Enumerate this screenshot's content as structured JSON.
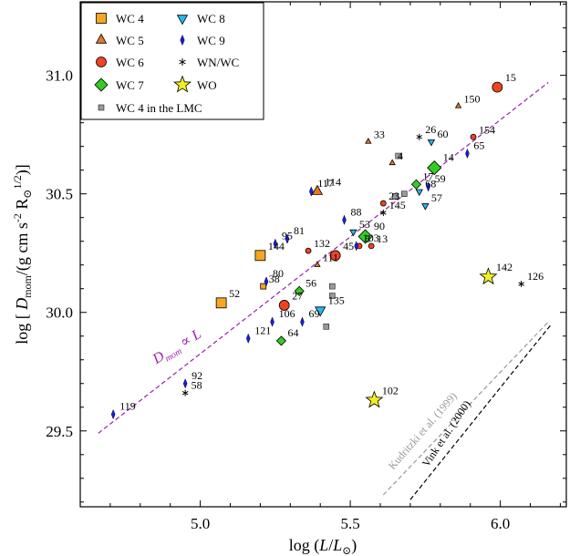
{
  "chart_data": {
    "type": "scatter",
    "xlabel": "log (L/L⊙)",
    "ylabel": "log [ D_mom / (g cm s⁻² R⊙^1/2) ]",
    "xlim": [
      4.6,
      6.22
    ],
    "ylim": [
      29.18,
      31.31
    ],
    "x_ticks": [
      5.0,
      5.5,
      6.0
    ],
    "y_ticks": [
      29.5,
      30.0,
      30.5,
      31.0
    ],
    "x_tick_labels": [
      "5.0",
      "5.5",
      "6.0"
    ],
    "y_tick_labels": [
      "29.5",
      "30.0",
      "30.5",
      "31.0"
    ],
    "legend_position": "top-left",
    "categories": [
      {
        "key": "wc4",
        "name": "WC 4",
        "marker": "square",
        "color": "#f5a623"
      },
      {
        "key": "wc5",
        "name": "WC 5",
        "marker": "triangle-up",
        "color": "#e8752a"
      },
      {
        "key": "wc6",
        "name": "WC 6",
        "marker": "circle",
        "color": "#ee4422"
      },
      {
        "key": "wc7",
        "name": "WC 7",
        "marker": "diamond",
        "color": "#33cc22"
      },
      {
        "key": "wc4lmc",
        "name": "WC 4 in the LMC",
        "marker": "small-square",
        "color": "#999999"
      },
      {
        "key": "wc8",
        "name": "WC 8",
        "marker": "triangle-down",
        "color": "#22bbee"
      },
      {
        "key": "wc9",
        "name": "WC 9",
        "marker": "thin-diamond",
        "color": "#1a1aee"
      },
      {
        "key": "wnwc",
        "name": "WN/WC",
        "marker": "asterisk",
        "color": "#000000"
      },
      {
        "key": "wo",
        "name": "WO",
        "marker": "star",
        "color": "#f2ee22"
      }
    ],
    "points": [
      {
        "cat": "wc4",
        "x": 5.07,
        "y": 30.04,
        "label": "52",
        "size": 11
      },
      {
        "cat": "wc4",
        "x": 5.2,
        "y": 30.24,
        "label": "144",
        "size": 11
      },
      {
        "cat": "wc4",
        "x": 5.21,
        "y": 30.11,
        "label": "38",
        "size": 6
      },
      {
        "cat": "wc5",
        "x": 5.39,
        "y": 30.51,
        "label": "114",
        "size": 11
      },
      {
        "cat": "wc5",
        "x": 5.56,
        "y": 30.72,
        "label": "33",
        "size": 6
      },
      {
        "cat": "wc5",
        "x": 5.64,
        "y": 30.63,
        "label": "4",
        "size": 6
      },
      {
        "cat": "wc5",
        "x": 5.86,
        "y": 30.87,
        "label": "150",
        "size": 6
      },
      {
        "cat": "wc5",
        "x": 5.39,
        "y": 30.2,
        "label": "111",
        "size": 6
      },
      {
        "cat": "wc6",
        "x": 5.99,
        "y": 30.95,
        "label": "15",
        "size": 11
      },
      {
        "cat": "wc6",
        "x": 5.91,
        "y": 30.74,
        "label": "154",
        "size": 6
      },
      {
        "cat": "wc6",
        "x": 5.28,
        "y": 30.03,
        "label": "27",
        "size": 11
      },
      {
        "cat": "wc6",
        "x": 5.45,
        "y": 30.24,
        "label": "45",
        "size": 11
      },
      {
        "cat": "wc6",
        "x": 5.36,
        "y": 30.26,
        "label": "132",
        "size": 6
      },
      {
        "cat": "wc6",
        "x": 5.53,
        "y": 30.28,
        "label": "5",
        "size": 6
      },
      {
        "cat": "wc6",
        "x": 5.57,
        "y": 30.28,
        "label": "13",
        "size": 6
      },
      {
        "cat": "wc6",
        "x": 5.61,
        "y": 30.46,
        "label": "23",
        "size": 6
      },
      {
        "cat": "wc7",
        "x": 5.78,
        "y": 30.61,
        "label": "14",
        "size": 13
      },
      {
        "cat": "wc7",
        "x": 5.55,
        "y": 30.32,
        "label": "90",
        "size": 13
      },
      {
        "cat": "wc7",
        "x": 5.33,
        "y": 30.09,
        "label": "56",
        "size": 8
      },
      {
        "cat": "wc7",
        "x": 5.27,
        "y": 29.88,
        "label": "64",
        "size": 8
      },
      {
        "cat": "wc7",
        "x": 5.72,
        "y": 30.54,
        "label": "17",
        "size": 8
      },
      {
        "cat": "wc8",
        "x": 5.77,
        "y": 30.72,
        "label": "60",
        "size": 7
      },
      {
        "cat": "wc8",
        "x": 5.75,
        "y": 30.45,
        "label": "57",
        "size": 7
      },
      {
        "cat": "wc8",
        "x": 5.4,
        "y": 30.01,
        "label": "135",
        "size": 11
      },
      {
        "cat": "wc8",
        "x": 5.51,
        "y": 30.34,
        "label": "53",
        "size": 7
      },
      {
        "cat": "wc8",
        "x": 5.73,
        "y": 30.51,
        "label": "68",
        "size": 7
      },
      {
        "cat": "wc9",
        "x": 4.71,
        "y": 29.57,
        "label": "119",
        "size": 8
      },
      {
        "cat": "wc9",
        "x": 4.95,
        "y": 29.7,
        "label": "92",
        "size": 8
      },
      {
        "cat": "wc9",
        "x": 5.16,
        "y": 29.89,
        "label": "121",
        "size": 8
      },
      {
        "cat": "wc9",
        "x": 5.24,
        "y": 29.96,
        "label": "106",
        "size": 8
      },
      {
        "cat": "wc9",
        "x": 5.34,
        "y": 29.96,
        "label": "69",
        "size": 8
      },
      {
        "cat": "wc9",
        "x": 5.22,
        "y": 30.13,
        "label": "80",
        "size": 8
      },
      {
        "cat": "wc9",
        "x": 5.25,
        "y": 30.29,
        "label": "95",
        "size": 8
      },
      {
        "cat": "wc9",
        "x": 5.29,
        "y": 30.31,
        "label": "81",
        "size": 8
      },
      {
        "cat": "wc9",
        "x": 5.37,
        "y": 30.51,
        "label": "117",
        "size": 8
      },
      {
        "cat": "wc9",
        "x": 5.48,
        "y": 30.39,
        "label": "88",
        "size": 8
      },
      {
        "cat": "wc9",
        "x": 5.52,
        "y": 30.28,
        "label": "103",
        "size": 8
      },
      {
        "cat": "wc9",
        "x": 5.76,
        "y": 30.53,
        "label": "59",
        "size": 8
      },
      {
        "cat": "wc9",
        "x": 5.89,
        "y": 30.67,
        "label": "65",
        "size": 8
      },
      {
        "cat": "wnwc",
        "x": 5.73,
        "y": 30.74,
        "label": "26",
        "size": 7
      },
      {
        "cat": "wnwc",
        "x": 5.61,
        "y": 30.42,
        "label": "145",
        "size": 7
      },
      {
        "cat": "wnwc",
        "x": 4.95,
        "y": 29.66,
        "label": "58",
        "size": 7
      },
      {
        "cat": "wnwc",
        "x": 6.07,
        "y": 30.12,
        "label": "126",
        "size": 7
      },
      {
        "cat": "wo",
        "x": 5.96,
        "y": 30.15,
        "label": "142",
        "size": 11
      },
      {
        "cat": "wo",
        "x": 5.58,
        "y": 29.63,
        "label": "102",
        "size": 11
      },
      {
        "cat": "wc4lmc",
        "x": 5.44,
        "y": 30.11,
        "label": "",
        "size": 6
      },
      {
        "cat": "wc4lmc",
        "x": 5.44,
        "y": 30.07,
        "label": "",
        "size": 6
      },
      {
        "cat": "wc4lmc",
        "x": 5.42,
        "y": 29.94,
        "label": "",
        "size": 6
      },
      {
        "cat": "wc4lmc",
        "x": 5.66,
        "y": 30.66,
        "label": "",
        "size": 6
      },
      {
        "cat": "wc4lmc",
        "x": 5.68,
        "y": 30.5,
        "label": "",
        "size": 6
      },
      {
        "cat": "wc4lmc",
        "x": 5.65,
        "y": 30.49,
        "label": "",
        "size": 6
      }
    ],
    "lines": [
      {
        "name": "D_mom ∝ L",
        "from": [
          4.66,
          29.49
        ],
        "to": [
          6.16,
          30.97
        ],
        "color": "#9922aa",
        "dash": "dashed"
      },
      {
        "name": "Kudritzki et al. (1999)",
        "from": [
          5.61,
          29.23
        ],
        "to": [
          6.16,
          29.96
        ],
        "color": "#999999",
        "dash": "dashed"
      },
      {
        "name": "Vink et al. (2000)",
        "from": [
          5.7,
          29.21
        ],
        "to": [
          6.17,
          29.95
        ],
        "color": "#000000",
        "dash": "dashed"
      }
    ],
    "annotations": [
      {
        "text": "D_mom ∝ L",
        "color": "#9922aa",
        "x": 4.93,
        "y": 29.84,
        "angle": -31
      },
      {
        "text": "Kudritzki et al. (1999)",
        "color": "#999999",
        "x": 5.75,
        "y": 29.49,
        "angle": -49
      },
      {
        "text": "Vink et al. (2000)",
        "color": "#000000",
        "x": 5.83,
        "y": 29.48,
        "angle": -56
      }
    ]
  }
}
